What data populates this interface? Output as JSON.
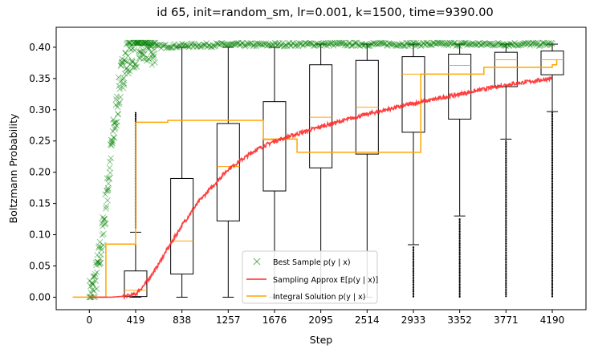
{
  "chart_data": {
    "type": "line",
    "title": "id 65, init=random_sm, lr=0.001, k=1500, time=9390.00",
    "xlabel": "Step",
    "ylabel": "Boltzmann Probability",
    "xlim": [
      -300,
      4495
    ],
    "ylim": [
      -0.02,
      0.432
    ],
    "x_ticks": [
      0,
      419,
      838,
      1257,
      1676,
      2095,
      2514,
      2933,
      3352,
      3771,
      4190
    ],
    "y_ticks": [
      0.0,
      0.05,
      0.1,
      0.15,
      0.2,
      0.25,
      0.3,
      0.35,
      0.4
    ],
    "y_tick_labels": [
      "0.00",
      "0.05",
      "0.10",
      "0.15",
      "0.20",
      "0.25",
      "0.30",
      "0.35",
      "0.40"
    ],
    "grid": false,
    "legend_position": "lower-center",
    "colors": {
      "best_sample": "#008000",
      "sampling_approx": "#ff2a2a",
      "integral_solution": "#ffa500",
      "box": "#000000",
      "median": "#ffa500"
    },
    "series": [
      {
        "name": "Best Sample p(y | x)",
        "legend_label": "Best Sample $p(y \\mid x)$",
        "marker": "x",
        "x": [
          0,
          30,
          60,
          90,
          120,
          150,
          180,
          210,
          240,
          270,
          300,
          330,
          360,
          400,
          450,
          500,
          600,
          700,
          900,
          1200,
          1600,
          2000,
          2500,
          3000,
          3500,
          4000,
          4190
        ],
        "y": [
          0.0,
          0.01,
          0.03,
          0.06,
          0.1,
          0.15,
          0.2,
          0.25,
          0.29,
          0.33,
          0.36,
          0.38,
          0.39,
          0.395,
          0.398,
          0.4,
          0.401,
          0.402,
          0.403,
          0.404,
          0.404,
          0.405,
          0.405,
          0.405,
          0.405,
          0.405,
          0.405
        ]
      },
      {
        "name": "Sampling Approx E[p(y | x)]",
        "legend_label": "Sampling Approx $E[p(y \\mid x)]$",
        "x": [
          0,
          200,
          350,
          419,
          500,
          600,
          700,
          838,
          1000,
          1257,
          1500,
          1676,
          2095,
          2514,
          2933,
          3352,
          3771,
          4190
        ],
        "y": [
          0.0,
          0.0,
          0.002,
          0.005,
          0.02,
          0.045,
          0.075,
          0.115,
          0.155,
          0.205,
          0.235,
          0.25,
          0.273,
          0.293,
          0.31,
          0.325,
          0.34,
          0.35
        ]
      },
      {
        "name": "Integral Solution p(y | x)",
        "legend_label": "Integral Solution $p(y \\mid x)$",
        "step": true,
        "x": [
          -150,
          100,
          150,
          300,
          419,
          710,
          1500,
          1575,
          1880,
          3000,
          3560,
          3571,
          4190,
          4230
        ],
        "y": [
          0.0,
          0.0,
          0.085,
          0.085,
          0.28,
          0.283,
          0.283,
          0.253,
          0.232,
          0.357,
          0.357,
          0.368,
          0.372,
          0.38
        ]
      }
    ],
    "boxplots": [
      {
        "x": 419,
        "whisker_low": 0.0,
        "q1": 0.001,
        "median": 0.011,
        "q3": 0.042,
        "whisker_high": 0.104,
        "fliers_range": [
          0.11,
          0.295
        ]
      },
      {
        "x": 838,
        "whisker_low": 0.0,
        "q1": 0.037,
        "median": 0.09,
        "q3": 0.19,
        "whisker_high": 0.4,
        "fliers_range": null
      },
      {
        "x": 1257,
        "whisker_low": 0.0,
        "q1": 0.122,
        "median": 0.209,
        "q3": 0.278,
        "whisker_high": 0.4,
        "fliers_range": null
      },
      {
        "x": 1676,
        "whisker_low": 0.0,
        "q1": 0.17,
        "median": 0.252,
        "q3": 0.313,
        "whisker_high": 0.4,
        "fliers_range": null
      },
      {
        "x": 2095,
        "whisker_low": 0.0,
        "q1": 0.207,
        "median": 0.288,
        "q3": 0.372,
        "whisker_high": 0.405,
        "fliers_range": null
      },
      {
        "x": 2514,
        "whisker_low": 0.0,
        "q1": 0.229,
        "median": 0.304,
        "q3": 0.379,
        "whisker_high": 0.405,
        "fliers_range": null
      },
      {
        "x": 2933,
        "whisker_low": 0.084,
        "q1": 0.264,
        "median": 0.357,
        "q3": 0.385,
        "whisker_high": 0.405,
        "fliers_range": [
          0.0,
          0.08
        ]
      },
      {
        "x": 3352,
        "whisker_low": 0.13,
        "q1": 0.285,
        "median": 0.371,
        "q3": 0.389,
        "whisker_high": 0.405,
        "fliers_range": [
          0.0,
          0.125
        ]
      },
      {
        "x": 3771,
        "whisker_low": 0.253,
        "q1": 0.337,
        "median": 0.38,
        "q3": 0.392,
        "whisker_high": 0.405,
        "fliers_range": [
          0.0,
          0.25
        ]
      },
      {
        "x": 4190,
        "whisker_low": 0.297,
        "q1": 0.356,
        "median": 0.38,
        "q3": 0.394,
        "whisker_high": 0.405,
        "fliers_range": [
          0.0,
          0.295
        ]
      }
    ]
  },
  "legend": {
    "best_sample": "Best Sample p(y | x)",
    "sampling_approx": "Sampling Approx E[p(y | x)]",
    "integral_solution": "Integral Solution p(y | x)"
  }
}
